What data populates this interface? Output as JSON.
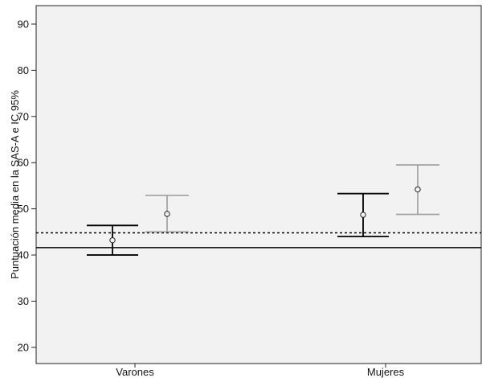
{
  "chart_data": {
    "type": "error_bar",
    "title": "",
    "xlabel": "",
    "ylabel": "Puntuación media en la SAS-A e IC 95%",
    "ylim": [
      16.5,
      94
    ],
    "yticks": [
      20,
      30,
      40,
      50,
      60,
      70,
      80,
      90
    ],
    "categories": [
      "Varones",
      "Mujeres"
    ],
    "series": [
      {
        "color": "#000000",
        "points": [
          {
            "mean": 43.2,
            "lower": 40.0,
            "upper": 46.4
          },
          {
            "mean": 48.7,
            "lower": 44.0,
            "upper": 53.3
          }
        ]
      },
      {
        "color": "#9b9b9b",
        "points": [
          {
            "mean": 48.9,
            "lower": 45.0,
            "upper": 52.9
          },
          {
            "mean": 54.2,
            "lower": 48.8,
            "upper": 59.5
          }
        ]
      }
    ],
    "reference_lines": [
      {
        "value": 41.6,
        "style": "solid",
        "color": "#000000"
      },
      {
        "value": 44.8,
        "style": "dotted",
        "color": "#000000"
      }
    ],
    "grid": false,
    "background": "#f2f2f2"
  }
}
